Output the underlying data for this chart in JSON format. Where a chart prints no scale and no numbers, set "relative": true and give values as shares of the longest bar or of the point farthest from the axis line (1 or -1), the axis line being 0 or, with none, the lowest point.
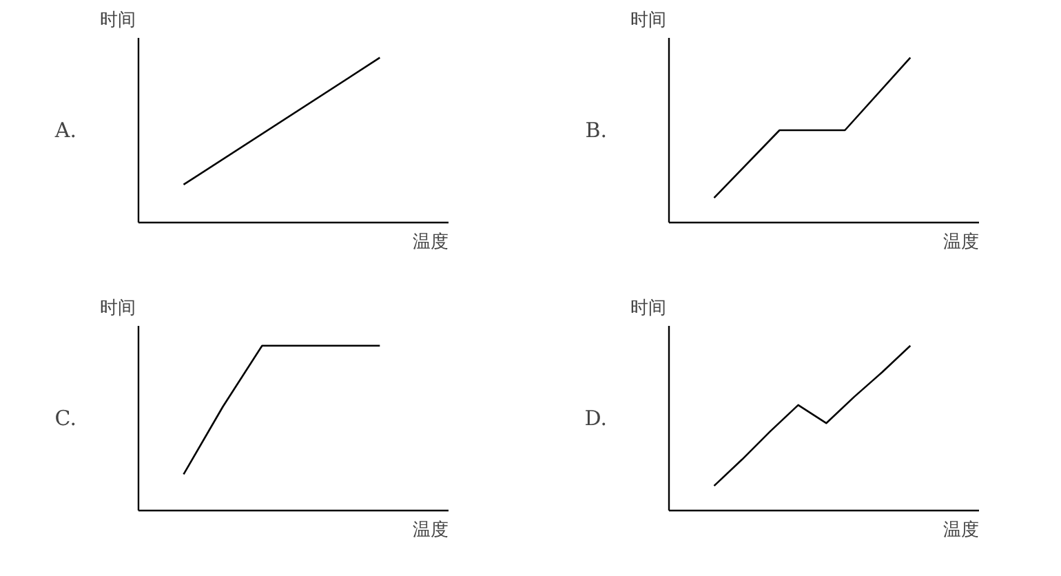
{
  "chart_data": [
    {
      "type": "line",
      "relative": true,
      "xlabel": "温度",
      "ylabel": "时间",
      "annotations": [
        "A."
      ],
      "categories": [
        null,
        null
      ],
      "series": [
        {
          "color": "#000000",
          "values": [
            0.23,
            1
          ]
        }
      ]
    },
    {
      "type": "line",
      "relative": true,
      "xlabel": "温度",
      "ylabel": "时间",
      "annotations": [
        "B."
      ],
      "categories": [
        null,
        null,
        null,
        null
      ],
      "series": [
        {
          "color": "#000000",
          "values": [
            0.15,
            0.56,
            0.56,
            1
          ]
        }
      ]
    },
    {
      "type": "line",
      "relative": true,
      "xlabel": "温度",
      "ylabel": "时间",
      "annotations": [
        "C."
      ],
      "categories": [
        null,
        null,
        null,
        null,
        null,
        null
      ],
      "series": [
        {
          "color": "#000000",
          "values": [
            0.22,
            0.63,
            1,
            1,
            1,
            1
          ]
        }
      ]
    },
    {
      "type": "line",
      "relative": true,
      "xlabel": "温度",
      "ylabel": "时间",
      "annotations": [
        "D."
      ],
      "categories": [
        null,
        null,
        null,
        null,
        null,
        null,
        null,
        null
      ],
      "series": [
        {
          "color": "#000000",
          "values": [
            0.15,
            0.31,
            0.48,
            0.64,
            0.53,
            0.69,
            0.84,
            1
          ]
        }
      ]
    }
  ]
}
